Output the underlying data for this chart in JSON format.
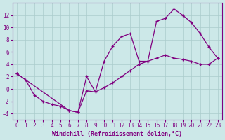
{
  "xlabel": "Windchill (Refroidissement éolien,°C)",
  "background_color": "#cce8e8",
  "line_color": "#800080",
  "grid_color": "#aacccc",
  "xlim": [
    -0.5,
    23.5
  ],
  "ylim": [
    -5,
    14
  ],
  "xticks": [
    0,
    1,
    2,
    3,
    4,
    5,
    6,
    7,
    8,
    9,
    10,
    11,
    12,
    13,
    14,
    15,
    16,
    17,
    18,
    19,
    20,
    21,
    22,
    23
  ],
  "yticks": [
    -4,
    -2,
    0,
    2,
    4,
    6,
    8,
    10,
    12
  ],
  "line1_x": [
    0,
    1,
    2,
    3,
    4,
    5,
    6,
    7,
    8,
    9,
    10,
    11,
    12,
    13,
    14,
    15,
    16,
    17,
    18,
    19,
    20,
    21,
    22,
    23
  ],
  "line1_y": [
    2.5,
    1.5,
    -1.0,
    -2.0,
    -2.5,
    -2.8,
    -3.5,
    -3.8,
    2.0,
    -0.5,
    4.5,
    7.0,
    8.5,
    9.0,
    4.5,
    4.5,
    11.0,
    11.5,
    13.0,
    12.0,
    10.8,
    9.0,
    6.8,
    5.0
  ],
  "line2_x": [
    0,
    6,
    7,
    8,
    9,
    10,
    11,
    12,
    13,
    14,
    15,
    16,
    17,
    18,
    19,
    20,
    21,
    22,
    23
  ],
  "line2_y": [
    2.5,
    -3.5,
    -3.8,
    -0.3,
    -0.5,
    0.2,
    1.0,
    2.0,
    3.0,
    4.0,
    4.5,
    5.0,
    5.5,
    5.0,
    4.8,
    4.5,
    4.0,
    4.0,
    5.0
  ],
  "fontsize_tick": 5.5,
  "fontsize_label": 6.0
}
